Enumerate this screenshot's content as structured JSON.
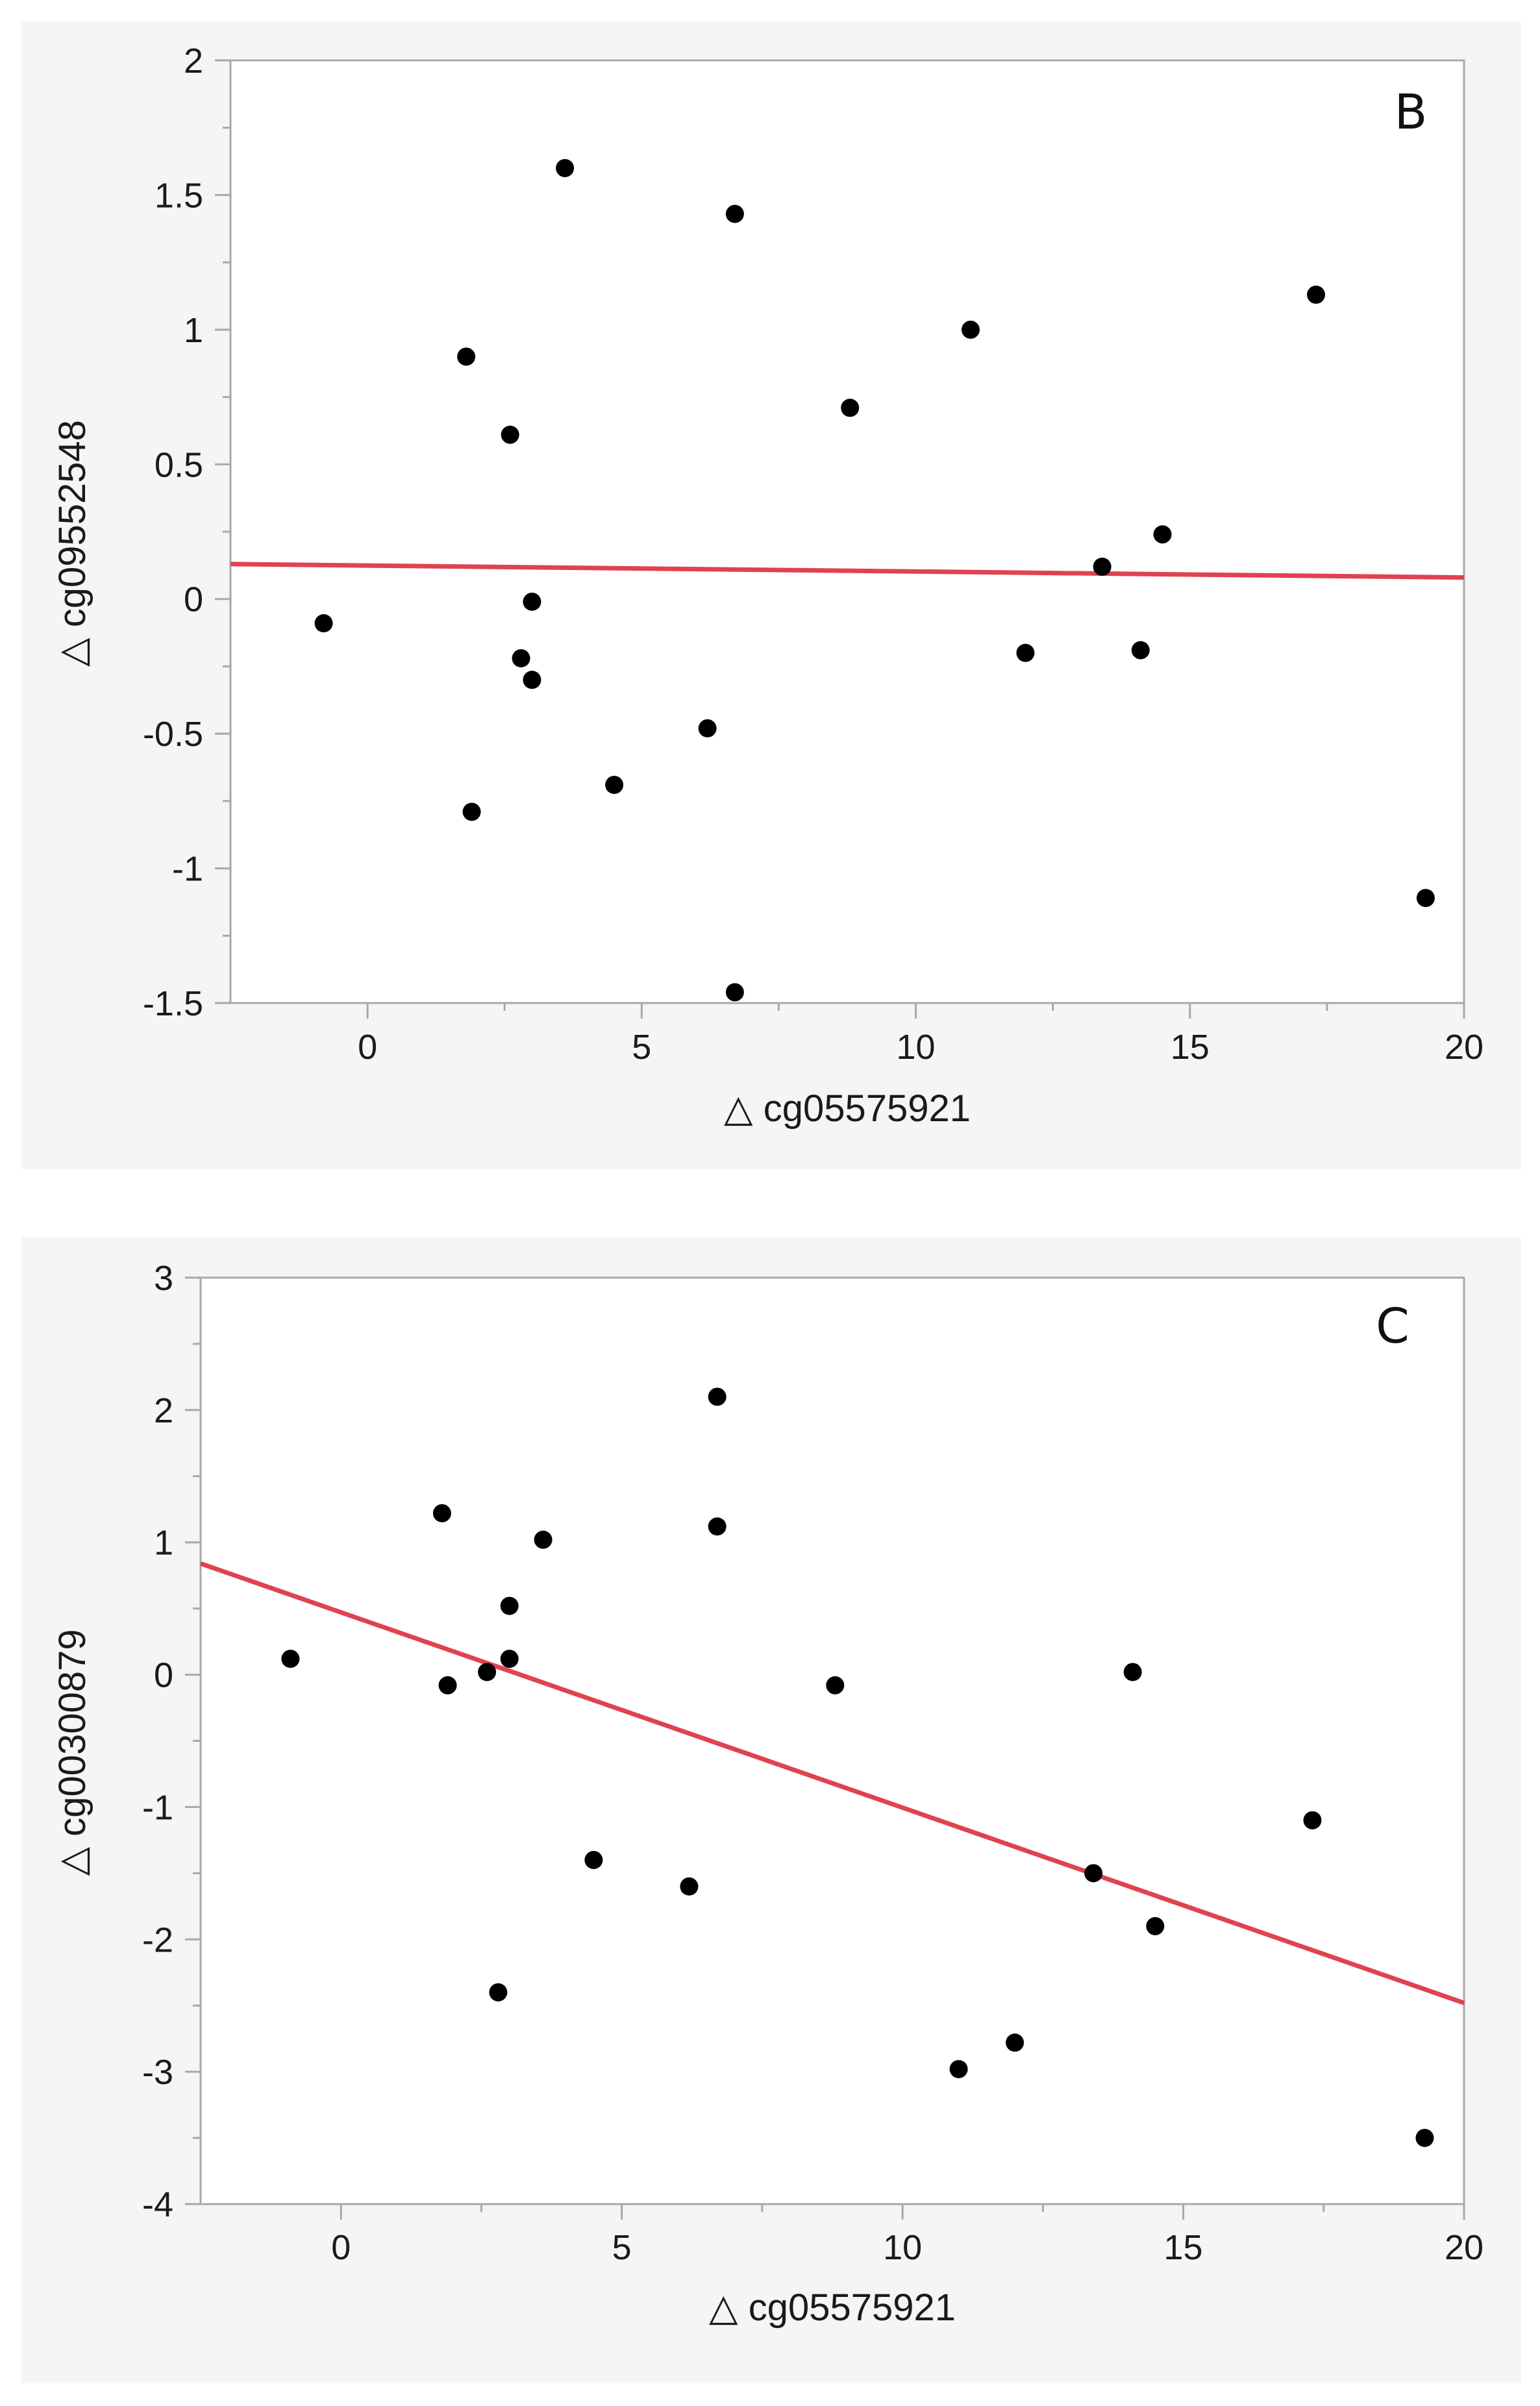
{
  "chart_data": [
    {
      "type": "scatter",
      "panel_label": "B",
      "xlabel": "△  cg05575921",
      "ylabel": "△  cg09552548",
      "xlim": [
        -2.5,
        20
      ],
      "ylim": [
        -1.5,
        2
      ],
      "xticks": [
        0,
        5,
        10,
        15,
        20
      ],
      "xtick_labels": [
        "0",
        "5",
        "10",
        "15",
        "20"
      ],
      "yticks": [
        -1.5,
        -1,
        -0.5,
        0,
        0.5,
        1,
        1.5,
        2
      ],
      "ytick_labels": [
        "-1.5",
        "-1",
        "-0.5",
        "0",
        "0.5",
        "1",
        "1.5",
        "2"
      ],
      "points": [
        {
          "x": -0.8,
          "y": -0.09
        },
        {
          "x": 1.8,
          "y": 0.9
        },
        {
          "x": 1.9,
          "y": -0.79
        },
        {
          "x": 2.6,
          "y": 0.61
        },
        {
          "x": 2.8,
          "y": -0.22
        },
        {
          "x": 3.0,
          "y": -0.01
        },
        {
          "x": 3.0,
          "y": -0.3
        },
        {
          "x": 3.6,
          "y": 1.6
        },
        {
          "x": 4.5,
          "y": -0.69
        },
        {
          "x": 6.2,
          "y": -0.48
        },
        {
          "x": 6.7,
          "y": 1.43
        },
        {
          "x": 6.7,
          "y": -1.46
        },
        {
          "x": 8.8,
          "y": 0.71
        },
        {
          "x": 11.0,
          "y": 1.0
        },
        {
          "x": 12.0,
          "y": -0.2
        },
        {
          "x": 13.4,
          "y": 0.12
        },
        {
          "x": 14.1,
          "y": -0.19
        },
        {
          "x": 14.5,
          "y": 0.24
        },
        {
          "x": 17.3,
          "y": 1.13
        },
        {
          "x": 19.3,
          "y": -1.11
        }
      ],
      "fit_line": {
        "x": [
          -2.5,
          20
        ],
        "y": [
          0.13,
          0.08
        ],
        "color": "#e0424f"
      },
      "point_color": "#000000"
    },
    {
      "type": "scatter",
      "panel_label": "C",
      "xlabel": "△  cg05575921",
      "ylabel": "△  cg00300879",
      "xlim": [
        -2.5,
        20
      ],
      "ylim": [
        -4,
        3
      ],
      "xticks": [
        0,
        5,
        10,
        15,
        20
      ],
      "xtick_labels": [
        "0",
        "5",
        "10",
        "15",
        "20"
      ],
      "yticks": [
        -4,
        -3,
        -2,
        -1,
        0,
        1,
        2,
        3
      ],
      "ytick_labels": [
        "-4",
        "-3",
        "-2",
        "-1",
        "0",
        "1",
        "2",
        "3"
      ],
      "points": [
        {
          "x": -0.9,
          "y": 0.12
        },
        {
          "x": 1.8,
          "y": 1.22
        },
        {
          "x": 1.9,
          "y": -0.08
        },
        {
          "x": 2.6,
          "y": 0.02
        },
        {
          "x": 2.8,
          "y": -2.4
        },
        {
          "x": 3.0,
          "y": 0.52
        },
        {
          "x": 3.0,
          "y": 0.12
        },
        {
          "x": 3.6,
          "y": 1.02
        },
        {
          "x": 4.5,
          "y": -1.4
        },
        {
          "x": 6.2,
          "y": -1.6
        },
        {
          "x": 6.7,
          "y": 2.1
        },
        {
          "x": 6.7,
          "y": 1.12
        },
        {
          "x": 8.8,
          "y": -0.08
        },
        {
          "x": 11.0,
          "y": -2.98
        },
        {
          "x": 12.0,
          "y": -2.78
        },
        {
          "x": 13.4,
          "y": -1.5
        },
        {
          "x": 14.1,
          "y": 0.02
        },
        {
          "x": 14.5,
          "y": -1.9
        },
        {
          "x": 17.3,
          "y": -1.1
        },
        {
          "x": 19.3,
          "y": -3.5
        }
      ],
      "fit_line": {
        "x": [
          -2.5,
          20
        ],
        "y": [
          0.84,
          -2.48
        ],
        "color": "#e0424f"
      },
      "point_color": "#000000"
    }
  ]
}
